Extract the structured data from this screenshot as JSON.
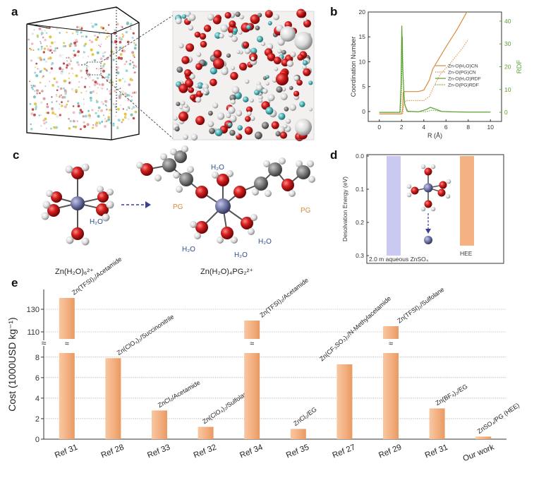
{
  "figure": {
    "panels": {
      "a": {
        "label": "a"
      },
      "b": {
        "label": "b"
      },
      "c": {
        "label": "c"
      },
      "d": {
        "label": "d"
      },
      "e": {
        "label": "e"
      }
    },
    "panel_c": {
      "left_caption": "Zn(H₂O)₆²⁺",
      "right_caption": "Zn(H₂O)₄PG₂²⁺",
      "label_h2o": "H₂O",
      "label_pg": "PG"
    },
    "colors": {
      "oxygen": "#cc1e1e",
      "hydrogen": "#e6e6e6",
      "carbon": "#7a7a7a",
      "zinc": "#7377a8",
      "accent_orange": "#d98a3c",
      "accent_green": "#5aa02c",
      "bar_fill": "#f4b183",
      "bar_lavender": "#c9c9f2"
    }
  },
  "chart_data": [
    {
      "id": "b",
      "type": "line",
      "xlabel": "R (Å)",
      "ylabel": "Coordination Number",
      "y2label": "RDF",
      "xlim": [
        -1,
        11
      ],
      "ylim": [
        -2,
        20
      ],
      "y2lim": [
        -4,
        44
      ],
      "xticks": [
        0,
        2,
        4,
        6,
        8,
        10
      ],
      "yticks": [
        0,
        5,
        10,
        15,
        20
      ],
      "y2ticks": [
        0,
        10,
        20,
        30,
        40
      ],
      "series": [
        {
          "name": "Zn-O(H₂O)CN",
          "axis": "left",
          "style": "solid",
          "color": "#d98a3c",
          "x": [
            0,
            2.0,
            2.1,
            2.15,
            2.3,
            3.5,
            4.0,
            4.5,
            4.8,
            5.2,
            6.0,
            7.0,
            8.0
          ],
          "y": [
            -0.5,
            -0.5,
            0.5,
            3.8,
            4.0,
            4.0,
            4.3,
            6.3,
            8.5,
            10.0,
            13.0,
            16.5,
            20.5
          ]
        },
        {
          "name": "Zn-O(PG)CN",
          "axis": "left",
          "style": "dotted",
          "color": "#d98a3c",
          "x": [
            0,
            2.1,
            2.2,
            2.4,
            4.0,
            4.5,
            5.0,
            5.5,
            6.5,
            7.5,
            8.0
          ],
          "y": [
            -0.5,
            -0.5,
            1.5,
            2.2,
            2.2,
            3.0,
            5.5,
            7.5,
            10.0,
            12.8,
            14.5
          ]
        },
        {
          "name": "Zn-O(H₂O)RDF",
          "axis": "right",
          "style": "solid",
          "color": "#5aa02c",
          "x": [
            0,
            1.85,
            1.95,
            2.02,
            2.1,
            2.25,
            2.5,
            3.5,
            4.2,
            4.6,
            5.0,
            5.6,
            6.5,
            8,
            10
          ],
          "y": [
            0,
            0,
            12,
            38,
            20,
            4,
            0.5,
            0.2,
            1.2,
            2.2,
            1.5,
            0.4,
            0.2,
            0.1,
            0.1
          ]
        },
        {
          "name": "Zn-O(PG)RDF",
          "axis": "right",
          "style": "dotted",
          "color": "#5aa02c",
          "x": [
            0,
            1.9,
            2.0,
            2.07,
            2.15,
            2.3,
            2.6,
            4.2,
            4.8,
            5.6,
            8,
            10
          ],
          "y": [
            0,
            0,
            10,
            33,
            14,
            3,
            0.3,
            0.3,
            1.0,
            0.3,
            0.1,
            0.1
          ]
        }
      ]
    },
    {
      "id": "d",
      "type": "bar",
      "ylabel": "Desolvation Energy (eV)",
      "yticks": [
        0.0,
        0.1,
        0.2,
        0.3
      ],
      "ylim": [
        0,
        0.3
      ],
      "y_inverted": true,
      "categories": [
        "2.0 m aqueous ZnSO₄",
        "HEE"
      ],
      "values": [
        0.3,
        0.27
      ]
    },
    {
      "id": "e",
      "type": "bar",
      "ylabel": "Cost (1000USD kg⁻¹)",
      "yticks_lower": [
        0,
        2,
        4,
        6,
        8
      ],
      "yticks_upper": [
        110,
        130
      ],
      "axis_break": "≈",
      "categories": [
        "Ref 31",
        "Ref 28",
        "Ref 33",
        "Ref 32",
        "Ref 34",
        "Ref 35",
        "Ref 27",
        "Ref 29",
        "Ref 31",
        "Our work"
      ],
      "annotations": [
        "Zn(TFSI)₂/Acetamide",
        "Zn(ClO₄)₂/Succinonitrile",
        "ZnCl₂/Acetamide",
        "Zn(ClO₄)₂/Sulfolane",
        "Zn(TFSI)₂/Acetamide",
        "ZnCl₂/EG",
        "Zn(CF₃SO₃)₂/N-Methylacetamide",
        "Zn(TFSI)₂/Sulfolane",
        "Zn(BF₄)₂/EG",
        "ZnSO₄/PG (HEE)"
      ],
      "values": [
        140,
        7.9,
        2.8,
        1.2,
        120,
        1.0,
        7.3,
        115,
        3.0,
        0.25
      ]
    }
  ]
}
